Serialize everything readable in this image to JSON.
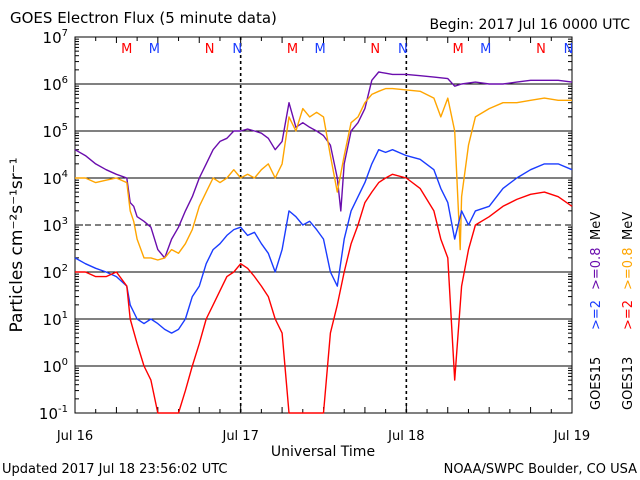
{
  "header": {
    "title": "GOES Electron Flux (5 minute data)",
    "begin": "Begin: 2017 Jul 16 0000 UTC"
  },
  "footer": {
    "updated": "Updated 2017 Jul 18 23:56:02 UTC",
    "credit": "NOAA/SWPC Boulder, CO USA"
  },
  "colors": {
    "goes15_2mev": "#1a3cff",
    "goes15_08mev": "#6a0dad",
    "goes13_2mev": "#ff0000",
    "goes13_08mev": "#ffa500",
    "marker_M": "#ff0000",
    "marker_N_red": "#ff0000",
    "marker_N_blue": "#1a3cff"
  },
  "chart_data": {
    "type": "line",
    "title": "GOES Electron Flux (5 minute data)",
    "xlabel": "Universal Time",
    "ylabel": "Particles cm⁻²s⁻¹sr⁻¹",
    "yscale": "log",
    "xlim": [
      0,
      72
    ],
    "ylim": [
      0.1,
      10000000
    ],
    "x_ticks": [
      "Jul 16",
      "Jul 17",
      "Jul 18",
      "Jul 19"
    ],
    "y_ticks": [
      {
        "base": "10",
        "exp": "-1"
      },
      {
        "base": "10",
        "exp": "0"
      },
      {
        "base": "10",
        "exp": "1"
      },
      {
        "base": "10",
        "exp": "2"
      },
      {
        "base": "10",
        "exp": "3"
      },
      {
        "base": "10",
        "exp": "4"
      },
      {
        "base": "10",
        "exp": "5"
      },
      {
        "base": "10",
        "exp": "6"
      },
      {
        "base": "10",
        "exp": "7"
      }
    ],
    "threshold_lines": [
      1000
    ],
    "right_labels": {
      "goes15": "GOES15",
      "goes13": "GOES13",
      "g15_2": ">=2",
      "g15_08": ">=0.8",
      "g13_2": ">=2",
      "g13_08": ">=0.8",
      "mev": "MeV"
    },
    "markers": [
      {
        "label": "M",
        "x": 7.5,
        "color": "red"
      },
      {
        "label": "M",
        "x": 11.5,
        "color": "blue"
      },
      {
        "label": "N",
        "x": 19.5,
        "color": "red"
      },
      {
        "label": "N",
        "x": 23.5,
        "color": "blue"
      },
      {
        "label": "M",
        "x": 31.5,
        "color": "red"
      },
      {
        "label": "M",
        "x": 35.5,
        "color": "blue"
      },
      {
        "label": "N",
        "x": 43.5,
        "color": "red"
      },
      {
        "label": "N",
        "x": 47.5,
        "color": "blue"
      },
      {
        "label": "M",
        "x": 55.5,
        "color": "red"
      },
      {
        "label": "M",
        "x": 59.5,
        "color": "blue"
      },
      {
        "label": "N",
        "x": 67.5,
        "color": "red"
      },
      {
        "label": "N",
        "x": 71.5,
        "color": "blue"
      }
    ],
    "series": [
      {
        "name": "GOES15 >=0.8 MeV",
        "color": "#6a0dad",
        "points": [
          [
            0,
            40000
          ],
          [
            1.5,
            30000
          ],
          [
            3,
            20000
          ],
          [
            4.5,
            15000
          ],
          [
            6,
            12000
          ],
          [
            7.5,
            10000
          ],
          [
            8,
            3000
          ],
          [
            8.5,
            2500
          ],
          [
            9,
            1500
          ],
          [
            10,
            1200
          ],
          [
            11,
            900
          ],
          [
            12,
            300
          ],
          [
            13,
            200
          ],
          [
            14,
            500
          ],
          [
            15,
            900
          ],
          [
            16,
            2000
          ],
          [
            17,
            4000
          ],
          [
            18,
            10000
          ],
          [
            19,
            20000
          ],
          [
            20,
            40000
          ],
          [
            21,
            60000
          ],
          [
            22,
            70000
          ],
          [
            23,
            100000
          ],
          [
            24,
            100000
          ],
          [
            25,
            110000
          ],
          [
            26,
            100000
          ],
          [
            27,
            90000
          ],
          [
            28,
            70000
          ],
          [
            29,
            40000
          ],
          [
            30,
            60000
          ],
          [
            31,
            400000
          ],
          [
            32,
            120000
          ],
          [
            33,
            150000
          ],
          [
            34,
            120000
          ],
          [
            35,
            100000
          ],
          [
            36,
            80000
          ],
          [
            37,
            50000
          ],
          [
            38,
            10000
          ],
          [
            38.5,
            2000
          ],
          [
            39,
            20000
          ],
          [
            40,
            100000
          ],
          [
            41,
            150000
          ],
          [
            42,
            300000
          ],
          [
            43,
            1200000
          ],
          [
            44,
            1800000
          ],
          [
            45,
            1700000
          ],
          [
            46,
            1600000
          ],
          [
            48,
            1600000
          ],
          [
            50,
            1500000
          ],
          [
            52,
            1400000
          ],
          [
            54,
            1300000
          ],
          [
            55,
            900000
          ],
          [
            56,
            1000000
          ],
          [
            58,
            1100000
          ],
          [
            60,
            1000000
          ],
          [
            62,
            1000000
          ],
          [
            64,
            1100000
          ],
          [
            66,
            1200000
          ],
          [
            68,
            1200000
          ],
          [
            70,
            1200000
          ],
          [
            72,
            1100000
          ]
        ]
      },
      {
        "name": "GOES13 >=0.8 MeV",
        "color": "#ffa500",
        "points": [
          [
            0,
            10000
          ],
          [
            1.5,
            10000
          ],
          [
            3,
            8000
          ],
          [
            4.5,
            9000
          ],
          [
            6,
            10000
          ],
          [
            7.5,
            8000
          ],
          [
            8,
            2000
          ],
          [
            8.5,
            1200
          ],
          [
            9,
            500
          ],
          [
            10,
            200
          ],
          [
            11,
            200
          ],
          [
            12,
            180
          ],
          [
            13,
            200
          ],
          [
            14,
            300
          ],
          [
            15,
            250
          ],
          [
            16,
            400
          ],
          [
            17,
            800
          ],
          [
            18,
            2500
          ],
          [
            19,
            5000
          ],
          [
            20,
            10000
          ],
          [
            21,
            8000
          ],
          [
            22,
            10000
          ],
          [
            23,
            15000
          ],
          [
            24,
            10000
          ],
          [
            25,
            12000
          ],
          [
            26,
            10000
          ],
          [
            27,
            15000
          ],
          [
            28,
            20000
          ],
          [
            29,
            10000
          ],
          [
            30,
            20000
          ],
          [
            31,
            200000
          ],
          [
            32,
            100000
          ],
          [
            33,
            300000
          ],
          [
            34,
            200000
          ],
          [
            35,
            250000
          ],
          [
            36,
            200000
          ],
          [
            37,
            30000
          ],
          [
            38,
            5000
          ],
          [
            39,
            30000
          ],
          [
            40,
            150000
          ],
          [
            41,
            200000
          ],
          [
            42,
            400000
          ],
          [
            43,
            600000
          ],
          [
            44,
            700000
          ],
          [
            45,
            800000
          ],
          [
            46,
            800000
          ],
          [
            48,
            750000
          ],
          [
            50,
            700000
          ],
          [
            52,
            500000
          ],
          [
            53,
            200000
          ],
          [
            54,
            500000
          ],
          [
            55,
            100000
          ],
          [
            55.8,
            300
          ],
          [
            56,
            4000
          ],
          [
            57,
            50000
          ],
          [
            58,
            200000
          ],
          [
            60,
            300000
          ],
          [
            62,
            400000
          ],
          [
            64,
            400000
          ],
          [
            66,
            450000
          ],
          [
            68,
            500000
          ],
          [
            70,
            450000
          ],
          [
            72,
            450000
          ]
        ]
      },
      {
        "name": "GOES15 >=2 MeV",
        "color": "#1a3cff",
        "points": [
          [
            0,
            200
          ],
          [
            1.5,
            150
          ],
          [
            3,
            120
          ],
          [
            4.5,
            100
          ],
          [
            6,
            80
          ],
          [
            7.5,
            50
          ],
          [
            8,
            20
          ],
          [
            9,
            10
          ],
          [
            10,
            8
          ],
          [
            11,
            10
          ],
          [
            12,
            8
          ],
          [
            13,
            6
          ],
          [
            14,
            5
          ],
          [
            15,
            6
          ],
          [
            16,
            10
          ],
          [
            17,
            30
          ],
          [
            18,
            50
          ],
          [
            19,
            150
          ],
          [
            20,
            300
          ],
          [
            21,
            400
          ],
          [
            22,
            600
          ],
          [
            23,
            800
          ],
          [
            24,
            900
          ],
          [
            25,
            600
          ],
          [
            26,
            700
          ],
          [
            27,
            400
          ],
          [
            28,
            250
          ],
          [
            29,
            100
          ],
          [
            30,
            300
          ],
          [
            31,
            2000
          ],
          [
            32,
            1500
          ],
          [
            33,
            1000
          ],
          [
            34,
            1200
          ],
          [
            35,
            800
          ],
          [
            36,
            500
          ],
          [
            37,
            100
          ],
          [
            38,
            50
          ],
          [
            39,
            500
          ],
          [
            40,
            2000
          ],
          [
            41,
            4000
          ],
          [
            42,
            8000
          ],
          [
            43,
            20000
          ],
          [
            44,
            40000
          ],
          [
            45,
            35000
          ],
          [
            46,
            40000
          ],
          [
            48,
            30000
          ],
          [
            50,
            25000
          ],
          [
            52,
            15000
          ],
          [
            53,
            6000
          ],
          [
            54,
            3000
          ],
          [
            55,
            500
          ],
          [
            56,
            2000
          ],
          [
            57,
            1000
          ],
          [
            58,
            2000
          ],
          [
            60,
            2500
          ],
          [
            62,
            6000
          ],
          [
            64,
            10000
          ],
          [
            66,
            15000
          ],
          [
            68,
            20000
          ],
          [
            70,
            20000
          ],
          [
            72,
            15000
          ]
        ]
      },
      {
        "name": "GOES13 >=2 MeV",
        "color": "#ff0000",
        "points": [
          [
            0,
            100
          ],
          [
            1.5,
            100
          ],
          [
            3,
            80
          ],
          [
            4.5,
            80
          ],
          [
            6,
            100
          ],
          [
            7.5,
            50
          ],
          [
            8,
            10
          ],
          [
            9,
            3
          ],
          [
            10,
            1
          ],
          [
            11,
            0.5
          ],
          [
            12,
            0.1
          ],
          [
            13,
            0.1
          ],
          [
            14,
            0.1
          ],
          [
            15,
            0.1
          ],
          [
            16,
            0.3
          ],
          [
            17,
            1
          ],
          [
            18,
            3
          ],
          [
            19,
            10
          ],
          [
            20,
            20
          ],
          [
            21,
            40
          ],
          [
            22,
            80
          ],
          [
            23,
            100
          ],
          [
            24,
            150
          ],
          [
            25,
            120
          ],
          [
            26,
            80
          ],
          [
            27,
            50
          ],
          [
            28,
            30
          ],
          [
            29,
            10
          ],
          [
            30,
            5
          ],
          [
            31,
            0.1
          ],
          [
            32,
            0.1
          ],
          [
            33,
            0.1
          ],
          [
            34,
            0.1
          ],
          [
            35,
            0.1
          ],
          [
            36,
            0.1
          ],
          [
            37,
            5
          ],
          [
            38,
            20
          ],
          [
            39,
            100
          ],
          [
            40,
            400
          ],
          [
            41,
            1000
          ],
          [
            42,
            3000
          ],
          [
            43,
            5000
          ],
          [
            44,
            8000
          ],
          [
            45,
            10000
          ],
          [
            46,
            12000
          ],
          [
            48,
            10000
          ],
          [
            50,
            6000
          ],
          [
            52,
            2000
          ],
          [
            53,
            500
          ],
          [
            54,
            200
          ],
          [
            55,
            0.5
          ],
          [
            56,
            50
          ],
          [
            57,
            300
          ],
          [
            58,
            1000
          ],
          [
            60,
            1500
          ],
          [
            62,
            2500
          ],
          [
            64,
            3500
          ],
          [
            66,
            4500
          ],
          [
            68,
            5000
          ],
          [
            70,
            4000
          ],
          [
            72,
            2500
          ]
        ]
      }
    ]
  }
}
